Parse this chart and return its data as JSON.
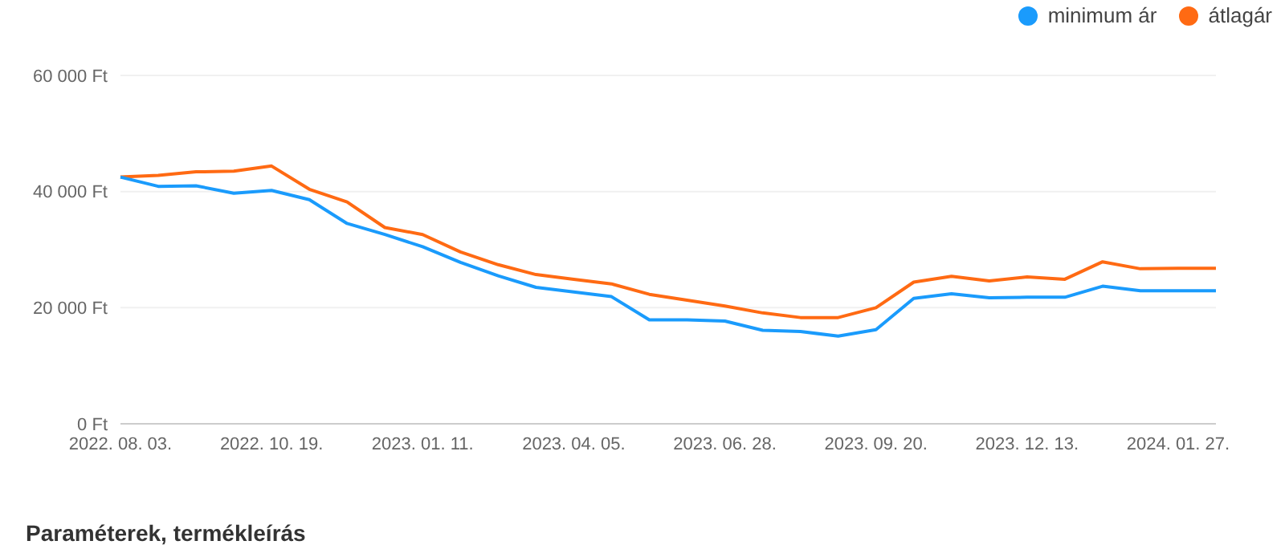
{
  "chart_data": {
    "type": "line",
    "categories": [
      "2022. 08. 03.",
      null,
      null,
      null,
      "2022. 10. 19.",
      null,
      null,
      null,
      "2023. 01. 11.",
      null,
      null,
      null,
      "2023. 04. 05.",
      null,
      null,
      null,
      "2023. 06. 28.",
      null,
      null,
      null,
      "2023. 09. 20.",
      null,
      null,
      null,
      "2023. 12. 13.",
      null,
      null,
      null,
      "2024. 01. 27.",
      null
    ],
    "series": [
      {
        "name": "átlagár",
        "color": "#ff6a13",
        "values": [
          42500,
          42800,
          43400,
          43500,
          44400,
          40400,
          38200,
          33800,
          32600,
          29600,
          27400,
          25700,
          24900,
          24100,
          22300,
          21300,
          20300,
          19100,
          18300,
          18300,
          20000,
          24400,
          25400,
          24600,
          25300,
          24900,
          27900,
          26700,
          26800,
          26800
        ]
      },
      {
        "name": "minimum ár",
        "color": "#1a9bfc",
        "values": [
          42500,
          40900,
          41000,
          39700,
          40200,
          38600,
          34500,
          32600,
          30500,
          27800,
          25500,
          23500,
          22700,
          21900,
          17900,
          17900,
          17700,
          16100,
          15900,
          15100,
          16200,
          21600,
          22400,
          21700,
          21800,
          21800,
          23700,
          22900,
          22900,
          22900
        ]
      }
    ],
    "ylim": [
      0,
      60000
    ],
    "yticks": [
      {
        "value": 0,
        "label": "0 Ft"
      },
      {
        "value": 20000,
        "label": "20 000 Ft"
      },
      {
        "value": 40000,
        "label": "40 000 Ft"
      },
      {
        "value": 60000,
        "label": "60 000 Ft"
      }
    ],
    "grid": "y",
    "legend": "top right",
    "marker": "none",
    "line_style": "solid",
    "annotations": [
      "Paraméterek, termékleírás"
    ]
  }
}
